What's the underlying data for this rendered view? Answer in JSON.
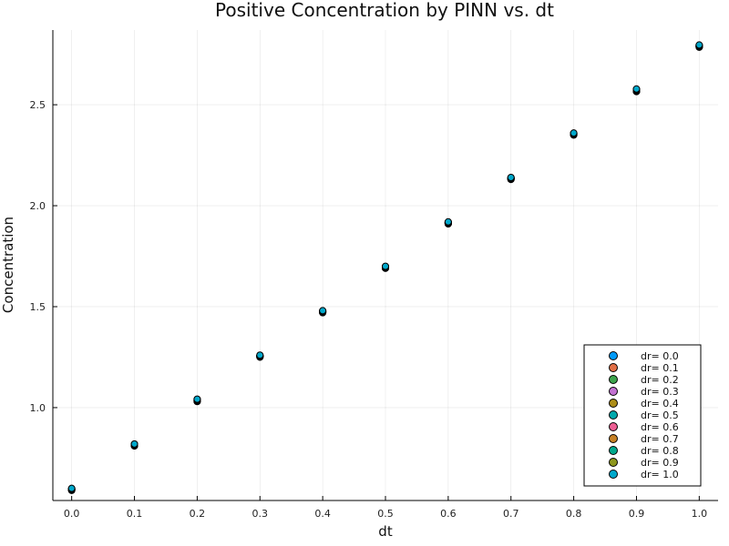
{
  "chart_data": {
    "type": "scatter",
    "title": "Positive Concentration by PINN vs. dt",
    "xlabel": "dt",
    "ylabel": "Concentration",
    "xlim": [
      -0.03,
      1.03
    ],
    "ylim": [
      0.54,
      2.87
    ],
    "xticks": [
      0.0,
      0.1,
      0.2,
      0.3,
      0.4,
      0.5,
      0.6,
      0.7,
      0.8,
      0.9,
      1.0
    ],
    "xtick_labels": [
      "0.0",
      "0.1",
      "0.2",
      "0.3",
      "0.4",
      "0.5",
      "0.6",
      "0.7",
      "0.8",
      "0.9",
      "1.0"
    ],
    "yticks": [
      1.0,
      1.5,
      2.0,
      2.5
    ],
    "ytick_labels": [
      "1.0",
      "1.5",
      "2.0",
      "2.5"
    ],
    "grid": true,
    "legend_position": "bottom-right",
    "x": [
      0.0,
      0.1,
      0.2,
      0.3,
      0.4,
      0.5,
      0.6,
      0.7,
      0.8,
      0.9,
      1.0
    ],
    "series": [
      {
        "name": "dr= 0.0",
        "color": "#009af9",
        "values": [
          0.59,
          0.81,
          1.03,
          1.25,
          1.47,
          1.69,
          1.91,
          2.13,
          2.35,
          2.565,
          2.785
        ]
      },
      {
        "name": "dr= 0.1",
        "color": "#e26f46",
        "values": [
          0.591,
          0.811,
          1.031,
          1.251,
          1.471,
          1.691,
          1.911,
          2.131,
          2.351,
          2.566,
          2.786
        ]
      },
      {
        "name": "dr= 0.2",
        "color": "#3da44d",
        "values": [
          0.592,
          0.812,
          1.032,
          1.252,
          1.472,
          1.692,
          1.912,
          2.132,
          2.352,
          2.567,
          2.787
        ]
      },
      {
        "name": "dr= 0.3",
        "color": "#c271d2",
        "values": [
          0.593,
          0.813,
          1.033,
          1.253,
          1.473,
          1.693,
          1.913,
          2.133,
          2.353,
          2.568,
          2.788
        ]
      },
      {
        "name": "dr= 0.4",
        "color": "#ac8d18",
        "values": [
          0.594,
          0.814,
          1.035,
          1.254,
          1.474,
          1.694,
          1.914,
          2.134,
          2.354,
          2.569,
          2.789
        ]
      },
      {
        "name": "dr= 0.5",
        "color": "#00a9ad",
        "values": [
          0.595,
          0.815,
          1.036,
          1.255,
          1.475,
          1.695,
          1.915,
          2.135,
          2.355,
          2.57,
          2.79
        ]
      },
      {
        "name": "dr= 0.6",
        "color": "#ed5e93",
        "values": [
          0.596,
          0.816,
          1.037,
          1.256,
          1.476,
          1.696,
          1.916,
          2.136,
          2.356,
          2.572,
          2.791
        ]
      },
      {
        "name": "dr= 0.7",
        "color": "#c68125",
        "values": [
          0.597,
          0.817,
          1.038,
          1.257,
          1.477,
          1.697,
          1.917,
          2.137,
          2.357,
          2.573,
          2.792
        ]
      },
      {
        "name": "dr= 0.8",
        "color": "#00a98d",
        "values": [
          0.598,
          0.818,
          1.04,
          1.258,
          1.478,
          1.698,
          1.918,
          2.138,
          2.358,
          2.575,
          2.794
        ]
      },
      {
        "name": "dr= 0.9",
        "color": "#8e971d",
        "values": [
          0.599,
          0.819,
          1.041,
          1.259,
          1.479,
          1.699,
          1.919,
          2.139,
          2.359,
          2.576,
          2.795
        ]
      },
      {
        "name": "dr= 1.0",
        "color": "#00a8cb",
        "values": [
          0.6,
          0.82,
          1.042,
          1.26,
          1.48,
          1.7,
          1.92,
          2.14,
          2.36,
          2.578,
          2.796
        ]
      }
    ]
  }
}
